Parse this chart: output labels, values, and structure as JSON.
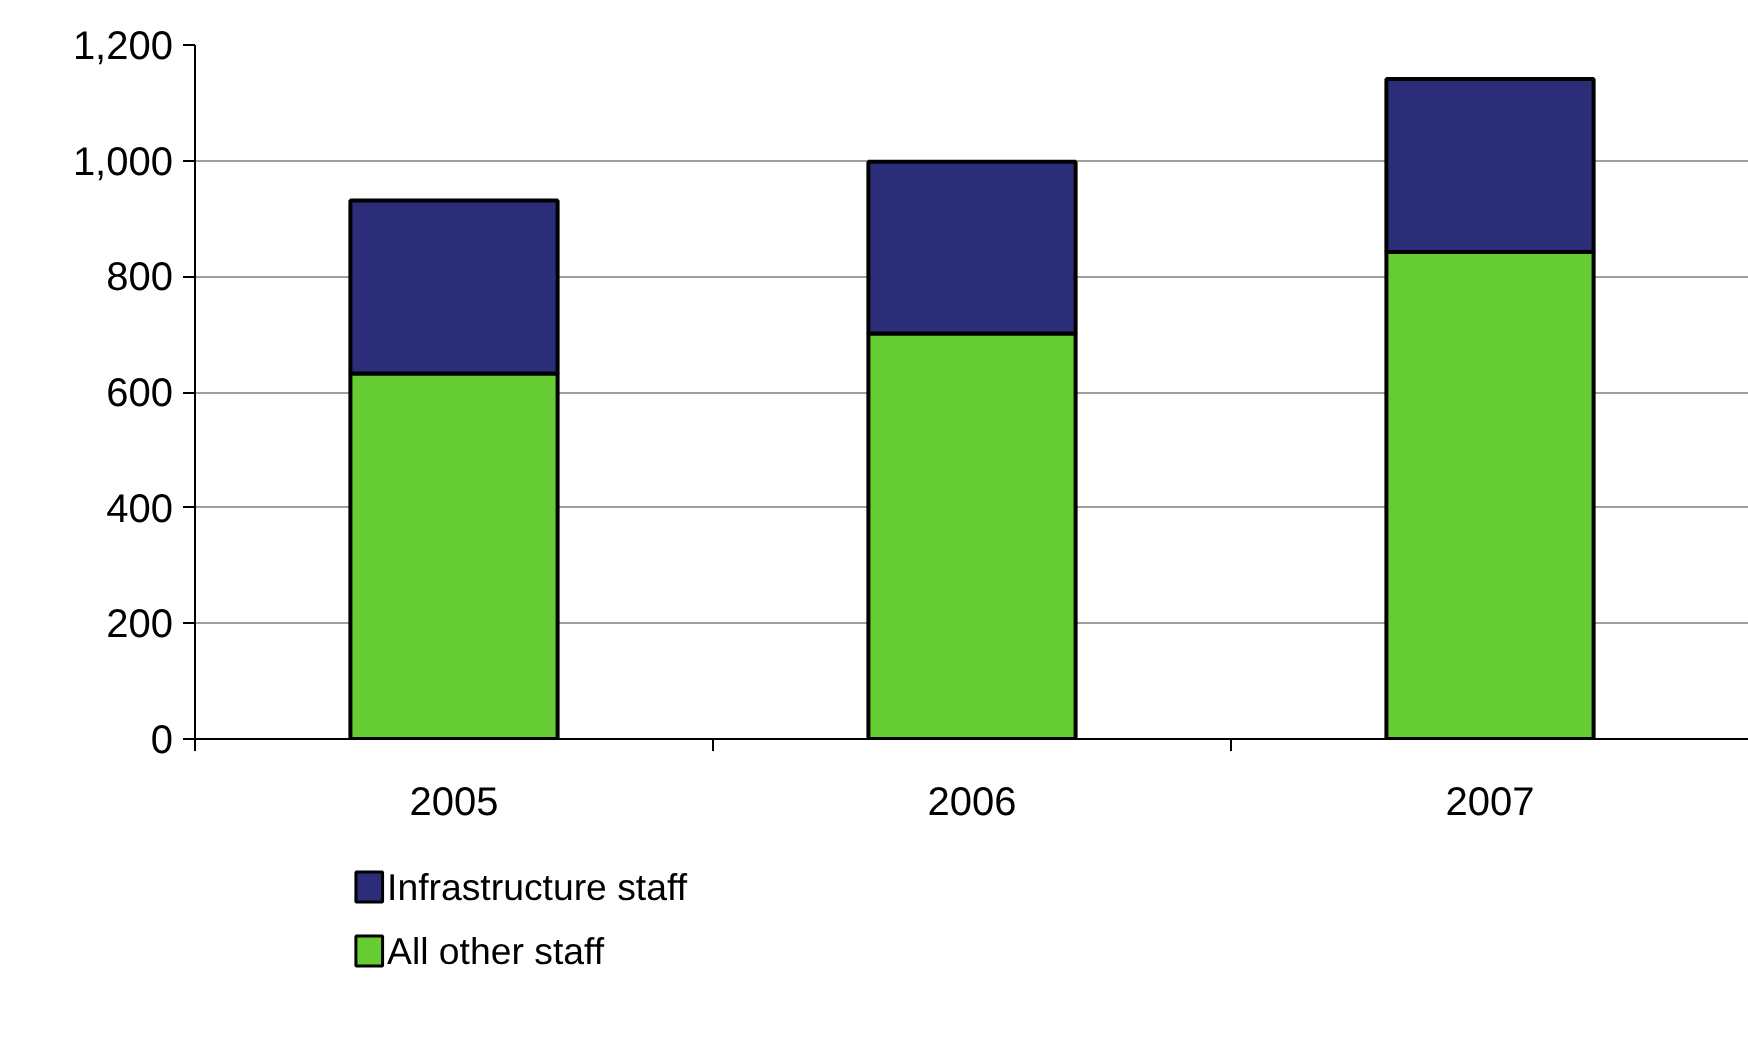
{
  "chart_data": {
    "type": "bar",
    "stacked": true,
    "categories": [
      "2005",
      "2006",
      "2007"
    ],
    "series": [
      {
        "name": "All other staff",
        "color": "#66cc33",
        "values": [
          632,
          701,
          842
        ]
      },
      {
        "name": "Infrastructure staff",
        "color": "#2b2d79",
        "values": [
          299,
          297,
          299
        ]
      }
    ],
    "ylim": [
      0,
      1200
    ],
    "yticks": [
      0,
      {
        "value": 200,
        "label": "200"
      },
      400,
      600,
      800,
      {
        "value": 1000,
        "label": "1,000"
      },
      {
        "value": 1200,
        "label": "1,200"
      }
    ],
    "grid": "y",
    "legend": "bottom"
  }
}
